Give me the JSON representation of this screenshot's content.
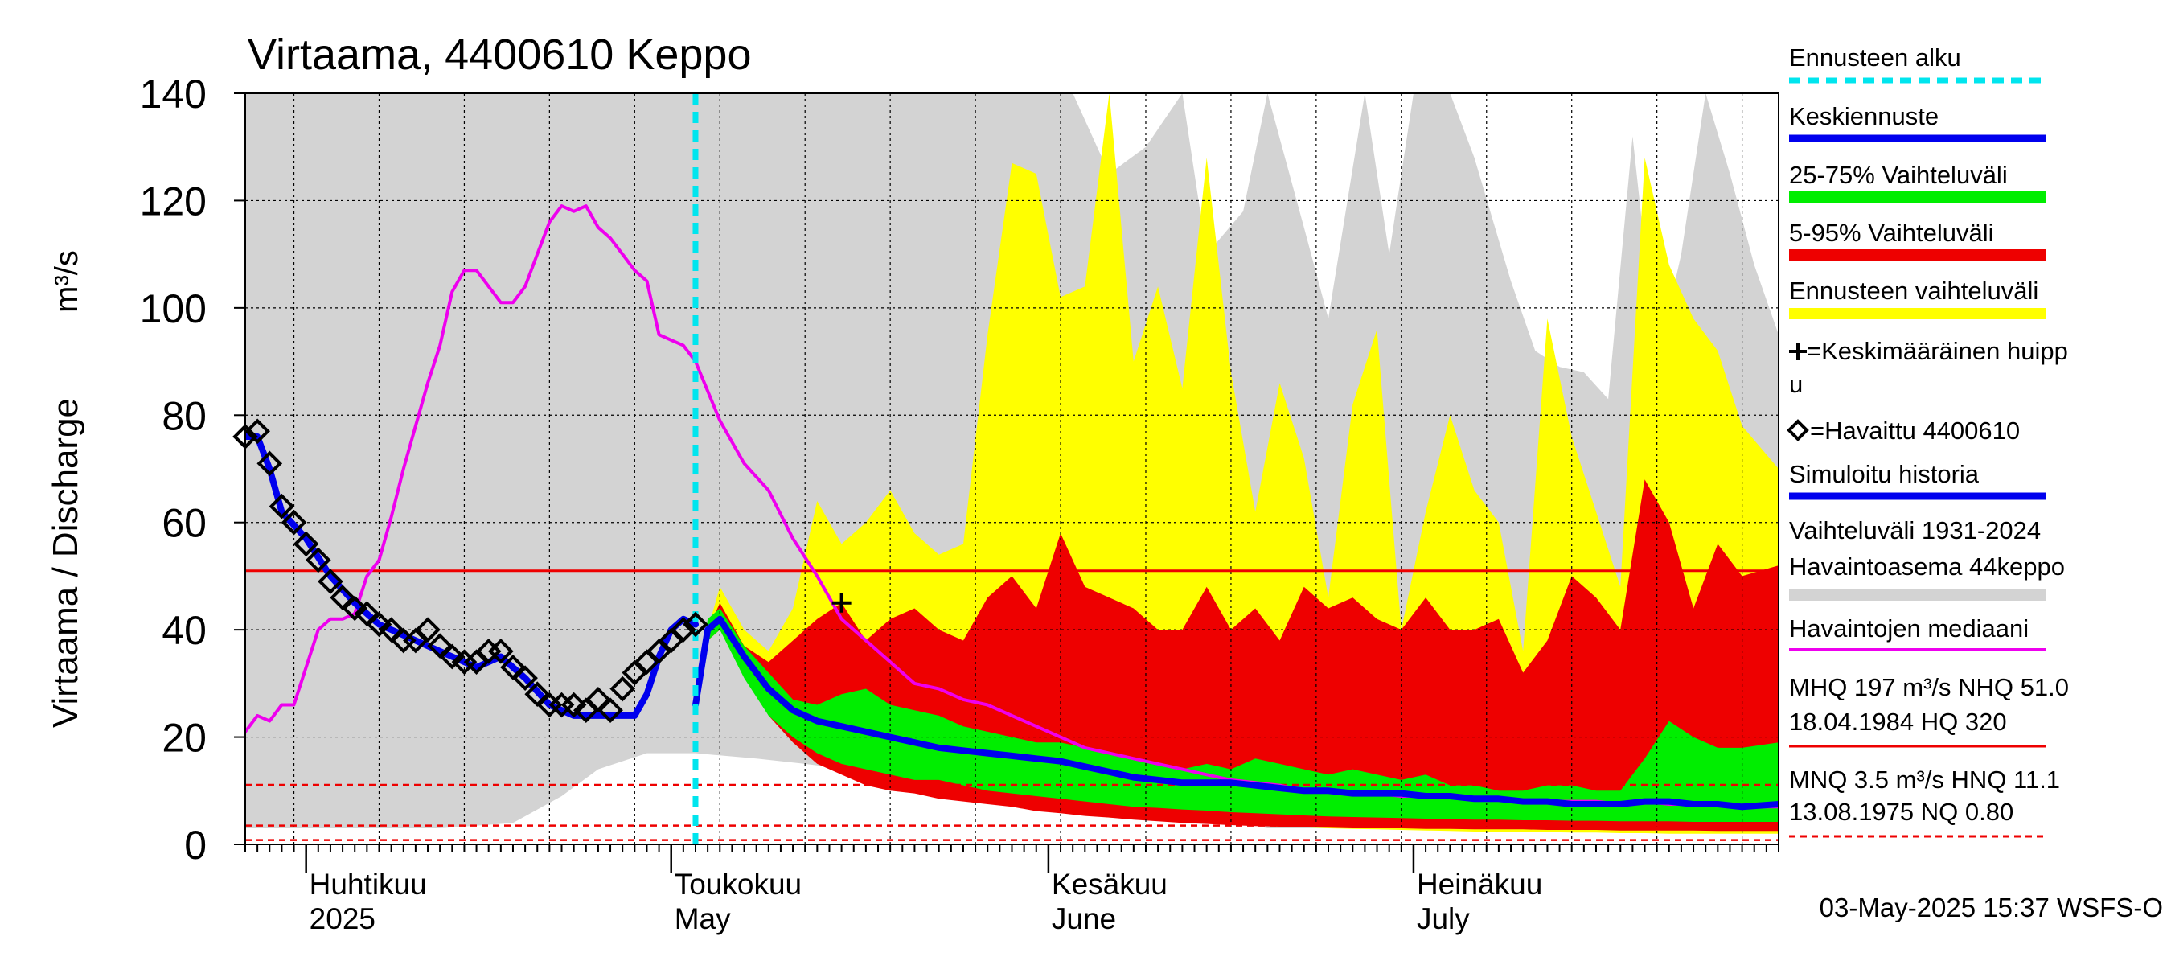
{
  "chart_data": {
    "type": "area",
    "title": "Virtaama, 4400610 Keppo",
    "ylabel": "Virtaama / Discharge",
    "yunit": "m³/s",
    "ylim": [
      0,
      140
    ],
    "yticks": [
      0,
      20,
      40,
      60,
      80,
      100,
      120,
      140
    ],
    "xlim": [
      "2025-03-27",
      "2025-07-31"
    ],
    "grid": true,
    "legend_position": "right",
    "month_labels": [
      {
        "date": "2025-04-01",
        "fi": "Huhtikuu",
        "en": "2025"
      },
      {
        "date": "2025-05-01",
        "fi": "Toukokuu",
        "en": "May"
      },
      {
        "date": "2025-06-01",
        "fi": "Kesäkuu",
        "en": "June"
      },
      {
        "date": "2025-07-01",
        "fi": "Heinäkuu",
        "en": "July"
      }
    ],
    "forecast_start": "2025-05-03",
    "mhq_line": 51.0,
    "dashed_lines": [
      11.1,
      3.5,
      0.8
    ],
    "peak_marker": {
      "date": "2025-05-15",
      "value": 45
    },
    "colors": {
      "forecast_start": "#00e5ee",
      "mean_forecast": "#0000ee",
      "iqr": "#00ee00",
      "p5_95": "#ee0000",
      "forecast_range": "#ffff00",
      "history_range": "#d3d3d3",
      "median": "#ee00ee",
      "simulated": "#0000ee",
      "mhq": "#ee0000"
    },
    "history_range": {
      "x": [
        "2025-03-27",
        "2025-04-04",
        "2025-04-12",
        "2025-04-18",
        "2025-04-22",
        "2025-04-25",
        "2025-04-29",
        "2025-05-03",
        "2025-05-08",
        "2025-05-12",
        "2025-05-19",
        "2025-05-23",
        "2025-05-28",
        "2025-05-30",
        "2025-06-01",
        "2025-06-03",
        "2025-06-06",
        "2025-06-09",
        "2025-06-12",
        "2025-06-14",
        "2025-06-17",
        "2025-06-19",
        "2025-06-22",
        "2025-06-24",
        "2025-06-27",
        "2025-06-29",
        "2025-07-01",
        "2025-07-04",
        "2025-07-06",
        "2025-07-09",
        "2025-07-11",
        "2025-07-13",
        "2025-07-15",
        "2025-07-17",
        "2025-07-19",
        "2025-07-21",
        "2025-07-23",
        "2025-07-25",
        "2025-07-27",
        "2025-07-29",
        "2025-07-31"
      ],
      "low": [
        3,
        3,
        3,
        4,
        9,
        14,
        17,
        17,
        16,
        15,
        13,
        11,
        9,
        8,
        7,
        6,
        5,
        5,
        4,
        4,
        4,
        3,
        3,
        3,
        3,
        3,
        3,
        3,
        3,
        3,
        3,
        3,
        3,
        3,
        3,
        3,
        3,
        3,
        3,
        3,
        3
      ],
      "high": [
        140,
        140,
        140,
        140,
        140,
        140,
        140,
        140,
        140,
        140,
        140,
        140,
        140,
        140,
        140,
        140,
        125,
        130,
        140,
        110,
        118,
        140,
        115,
        98,
        140,
        110,
        140,
        140,
        128,
        105,
        92,
        89,
        88,
        83,
        132,
        90,
        110,
        140,
        125,
        108,
        95
      ]
    },
    "forecast_x": [
      "2025-05-03",
      "2025-05-04",
      "2025-05-05",
      "2025-05-07",
      "2025-05-09",
      "2025-05-11",
      "2025-05-13",
      "2025-05-15",
      "2025-05-17",
      "2025-05-19",
      "2025-05-21",
      "2025-05-23",
      "2025-05-25",
      "2025-05-27",
      "2025-05-29",
      "2025-05-31",
      "2025-06-02",
      "2025-06-04",
      "2025-06-06",
      "2025-06-08",
      "2025-06-10",
      "2025-06-12",
      "2025-06-14",
      "2025-06-16",
      "2025-06-18",
      "2025-06-20",
      "2025-06-22",
      "2025-06-24",
      "2025-06-26",
      "2025-06-28",
      "2025-06-30",
      "2025-07-02",
      "2025-07-04",
      "2025-07-06",
      "2025-07-08",
      "2025-07-10",
      "2025-07-12",
      "2025-07-14",
      "2025-07-16",
      "2025-07-18",
      "2025-07-20",
      "2025-07-22",
      "2025-07-24",
      "2025-07-26",
      "2025-07-28",
      "2025-07-31"
    ],
    "forecast_range": {
      "low": [
        26,
        38,
        40,
        33,
        25,
        20,
        16,
        14,
        12,
        11,
        10,
        9,
        9,
        8,
        7,
        6.5,
        6,
        5.5,
        5,
        4.8,
        4.5,
        4.2,
        4,
        3.8,
        3.5,
        3.3,
        3.2,
        3,
        2.9,
        2.8,
        2.7,
        2.6,
        2.5,
        2.4,
        2.4,
        2.3,
        2.3,
        2.2,
        2.2,
        2.1,
        2.1,
        2,
        2,
        2,
        2,
        2
      ],
      "high": [
        26,
        40,
        48,
        40,
        36,
        44,
        64,
        56,
        60,
        66,
        58,
        54,
        56,
        95,
        127,
        125,
        102,
        104,
        140,
        90,
        104,
        85,
        128,
        88,
        62,
        86,
        72,
        46,
        82,
        96,
        40,
        62,
        80,
        66,
        60,
        36,
        98,
        76,
        62,
        48,
        128,
        108,
        98,
        92,
        78,
        70
      ]
    },
    "p5_95": {
      "low": [
        26,
        38,
        40,
        32,
        24,
        19,
        15,
        13,
        11,
        10,
        9.5,
        8.5,
        8,
        7.5,
        7,
        6.2,
        5.8,
        5.3,
        5,
        4.6,
        4.3,
        4,
        3.8,
        3.6,
        3.4,
        3.3,
        3.2,
        3.1,
        3,
        3,
        3,
        2.9,
        2.9,
        2.8,
        2.8,
        2.8,
        2.7,
        2.7,
        2.7,
        2.6,
        2.6,
        2.6,
        2.6,
        2.5,
        2.5,
        2.5
      ],
      "high": [
        26,
        40,
        45,
        37,
        34,
        38,
        42,
        45,
        38,
        42,
        44,
        40,
        38,
        46,
        50,
        44,
        58,
        48,
        46,
        44,
        40,
        40,
        48,
        40,
        44,
        38,
        48,
        44,
        46,
        42,
        40,
        46,
        40,
        40,
        42,
        32,
        38,
        50,
        46,
        40,
        68,
        60,
        44,
        56,
        50,
        52
      ]
    },
    "iqr": {
      "low": [
        26,
        38,
        40,
        31,
        24,
        20,
        17,
        15,
        14,
        13,
        12,
        12,
        11,
        10,
        9.5,
        9,
        8.5,
        8,
        7.5,
        7,
        6.8,
        6.5,
        6.3,
        6,
        5.8,
        5.6,
        5.4,
        5.2,
        5.1,
        5,
        4.9,
        4.8,
        4.7,
        4.6,
        4.6,
        4.5,
        4.5,
        4.4,
        4.4,
        4.3,
        4.3,
        4.3,
        4.2,
        4.2,
        4.2,
        4.2
      ],
      "high": [
        26,
        42,
        44,
        37,
        32,
        27,
        26,
        28,
        29,
        26,
        25,
        24,
        22,
        21,
        20,
        19,
        19,
        18,
        17,
        16,
        15,
        14,
        15,
        14,
        16,
        15,
        14,
        13,
        14,
        13,
        12,
        13,
        11,
        11,
        10,
        10,
        11,
        11,
        10,
        10,
        16,
        23,
        20,
        18,
        18,
        19
      ]
    },
    "mean_forecast": [
      26,
      40,
      42,
      35,
      29,
      25,
      23,
      22,
      21,
      20,
      19,
      18,
      17.5,
      17,
      16.5,
      16,
      15.5,
      14.5,
      13.5,
      12.5,
      12,
      11.5,
      11.5,
      11.5,
      11,
      10.5,
      10,
      10,
      9.5,
      9.5,
      9.5,
      9,
      9,
      8.5,
      8.5,
      8,
      8,
      7.5,
      7.5,
      7.5,
      8,
      8,
      7.5,
      7.5,
      7,
      7.5
    ],
    "observed": {
      "x": [
        "2025-03-27",
        "2025-03-28",
        "2025-03-29",
        "2025-03-30",
        "2025-03-31",
        "2025-04-01",
        "2025-04-02",
        "2025-04-03",
        "2025-04-04",
        "2025-04-05",
        "2025-04-06",
        "2025-04-07",
        "2025-04-08",
        "2025-04-09",
        "2025-04-10",
        "2025-04-11",
        "2025-04-12",
        "2025-04-13",
        "2025-04-14",
        "2025-04-15",
        "2025-04-16",
        "2025-04-17",
        "2025-04-18",
        "2025-04-19",
        "2025-04-20",
        "2025-04-21",
        "2025-04-22",
        "2025-04-23",
        "2025-04-24",
        "2025-04-25",
        "2025-04-26",
        "2025-04-27",
        "2025-04-28",
        "2025-04-29",
        "2025-04-30",
        "2025-05-01",
        "2025-05-02",
        "2025-05-03"
      ],
      "values": [
        76,
        77,
        71,
        63,
        60,
        56,
        53,
        49,
        46,
        44,
        43,
        41,
        40,
        38,
        38,
        40,
        37,
        35,
        34,
        34,
        36,
        36,
        33,
        31,
        28,
        26,
        26,
        26,
        25,
        27,
        25,
        29,
        32,
        34,
        36,
        38,
        40,
        41
      ]
    },
    "simulated": {
      "x": [
        "2025-03-27",
        "2025-03-28",
        "2025-03-29",
        "2025-03-30",
        "2025-04-01",
        "2025-04-03",
        "2025-04-05",
        "2025-04-07",
        "2025-04-09",
        "2025-04-11",
        "2025-04-13",
        "2025-04-15",
        "2025-04-17",
        "2025-04-19",
        "2025-04-21",
        "2025-04-23",
        "2025-04-25",
        "2025-04-27",
        "2025-04-28",
        "2025-04-29",
        "2025-04-30",
        "2025-05-01",
        "2025-05-02",
        "2025-05-03"
      ],
      "values": [
        76,
        76,
        70,
        62,
        57,
        50,
        45,
        41,
        39,
        37,
        35,
        33,
        35,
        31,
        26,
        24,
        24,
        24,
        24,
        28,
        35,
        40,
        42,
        41
      ]
    },
    "median": {
      "x": [
        "2025-03-27",
        "2025-03-28",
        "2025-03-29",
        "2025-03-30",
        "2025-03-31",
        "2025-04-01",
        "2025-04-02",
        "2025-04-03",
        "2025-04-04",
        "2025-04-05",
        "2025-04-06",
        "2025-04-07",
        "2025-04-08",
        "2025-04-09",
        "2025-04-10",
        "2025-04-11",
        "2025-04-12",
        "2025-04-13",
        "2025-04-14",
        "2025-04-15",
        "2025-04-16",
        "2025-04-17",
        "2025-04-18",
        "2025-04-19",
        "2025-04-20",
        "2025-04-21",
        "2025-04-22",
        "2025-04-23",
        "2025-04-24",
        "2025-04-25",
        "2025-04-26",
        "2025-04-27",
        "2025-04-28",
        "2025-04-29",
        "2025-04-30",
        "2025-05-01",
        "2025-05-02",
        "2025-05-03",
        "2025-05-05",
        "2025-05-07",
        "2025-05-09",
        "2025-05-11",
        "2025-05-13",
        "2025-05-15",
        "2025-05-17",
        "2025-05-19",
        "2025-05-21",
        "2025-05-23",
        "2025-05-25",
        "2025-05-27",
        "2025-05-29",
        "2025-05-31",
        "2025-06-02",
        "2025-06-04",
        "2025-06-06",
        "2025-06-08",
        "2025-06-10",
        "2025-06-12",
        "2025-06-14",
        "2025-06-16",
        "2025-06-18",
        "2025-06-20",
        "2025-06-22",
        "2025-06-24",
        "2025-06-26",
        "2025-06-28",
        "2025-06-30",
        "2025-07-02",
        "2025-07-04",
        "2025-07-06",
        "2025-07-08",
        "2025-07-10",
        "2025-07-12",
        "2025-07-14",
        "2025-07-16",
        "2025-07-18",
        "2025-07-20",
        "2025-07-22",
        "2025-07-24",
        "2025-07-26",
        "2025-07-28",
        "2025-07-31"
      ],
      "values": [
        21,
        24,
        23,
        26,
        26,
        33,
        40,
        42,
        42,
        43,
        50,
        53,
        61,
        70,
        78,
        86,
        93,
        103,
        107,
        107,
        104,
        101,
        101,
        104,
        110,
        116,
        119,
        118,
        119,
        115,
        113,
        110,
        107,
        105,
        95,
        94,
        93,
        90,
        79,
        71,
        66,
        57,
        50,
        42,
        38,
        34,
        30,
        29,
        27,
        26,
        24,
        22,
        20,
        18,
        17,
        16,
        15,
        14,
        13,
        12,
        11.5,
        11,
        10,
        10,
        9.5,
        9.5,
        9,
        9,
        9,
        8.5,
        8.5,
        8,
        8,
        8,
        8,
        7.5,
        8,
        7.5,
        7.5,
        7.5,
        7,
        7
      ]
    }
  },
  "legend": [
    {
      "key": "forecast_start",
      "label": "Ennusteen alku"
    },
    {
      "key": "mean_forecast",
      "label": "Keskiennuste"
    },
    {
      "key": "iqr",
      "label": "25-75% Vaihteluväli"
    },
    {
      "key": "p5_95",
      "label": "5-95% Vaihteluväli"
    },
    {
      "key": "forecast_range",
      "label": "Ennusteen vaihteluväli"
    },
    {
      "key": "peak",
      "label_line1": "=Keskimääräinen huipp",
      "label_line2": "u"
    },
    {
      "key": "observed",
      "label": "=Havaittu 4400610"
    },
    {
      "key": "simulated",
      "label": "Simuloitu historia"
    },
    {
      "key": "history_range",
      "label_line1": "Vaihteluväli 1931-2024",
      "label_line2": " Havaintoasema 44keppo"
    },
    {
      "key": "median",
      "label": "Havaintojen mediaani"
    },
    {
      "key": "mhq",
      "label_line1": "MHQ  197 m³/s NHQ 51.0",
      "label_line2": "18.04.1984 HQ  320"
    },
    {
      "key": "mnq",
      "label_line1": "MNQ  3.5 m³/s HNQ 11.1",
      "label_line2": "13.08.1975 NQ 0.80"
    }
  ],
  "footer": "03-May-2025 15:37 WSFS-O"
}
